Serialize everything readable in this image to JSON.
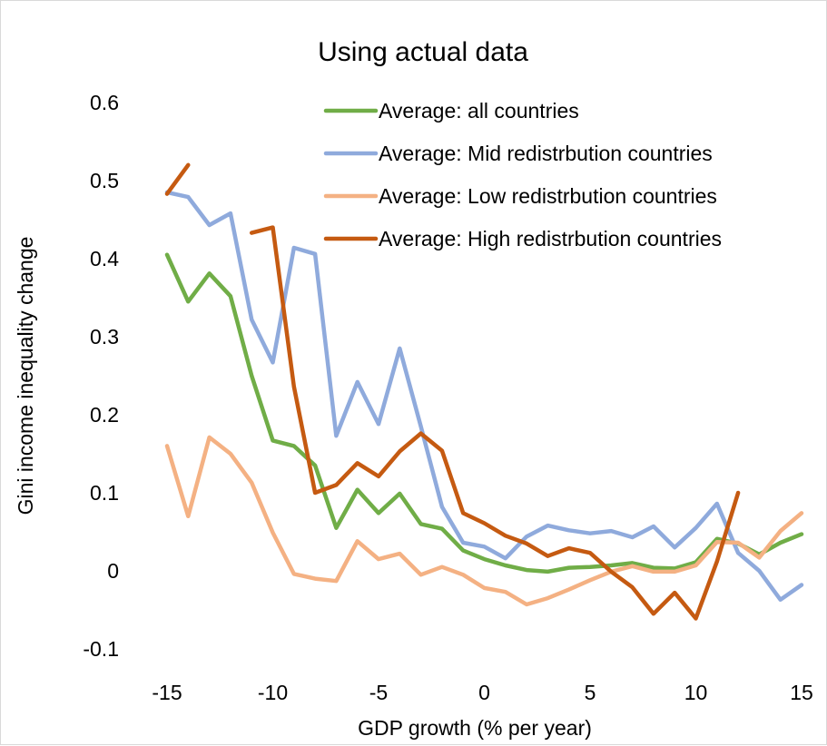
{
  "colors": {
    "all": "#70ad47",
    "mid": "#8faadc",
    "low": "#f4b183",
    "high": "#c55a11"
  },
  "chart_data": {
    "type": "line",
    "title": "Using actual data",
    "xlabel": "GDP growth (% per year)",
    "ylabel": "Gini income inequality change",
    "xlim": [
      -16,
      16
    ],
    "ylim": [
      -0.1,
      0.6
    ],
    "xticks": [
      -15,
      -10,
      -5,
      0,
      5,
      10,
      15
    ],
    "xtick_labels": [
      "-15",
      "-10",
      "-5",
      "0",
      "5",
      "10",
      "15"
    ],
    "yticks": [
      -0.1,
      0,
      0.1,
      0.2,
      0.3,
      0.4,
      0.5,
      0.6
    ],
    "ytick_labels": [
      "-0.1",
      "0",
      "0.1",
      "0.2",
      "0.3",
      "0.4",
      "0.5",
      "0.6"
    ],
    "grid": false,
    "legend": "top-right",
    "series": [
      {
        "name": "Average: all countries",
        "color_key": "all",
        "segments": [
          [
            [
              -15,
              0.405
            ],
            [
              -14,
              0.345
            ],
            [
              -13,
              0.381
            ],
            [
              -12,
              0.352
            ],
            [
              -11,
              0.25
            ],
            [
              -10,
              0.167
            ],
            [
              -9,
              0.16
            ],
            [
              -8,
              0.135
            ],
            [
              -7,
              0.055
            ],
            [
              -6,
              0.104
            ],
            [
              -5,
              0.074
            ],
            [
              -4,
              0.099
            ],
            [
              -3,
              0.06
            ],
            [
              -2,
              0.054
            ],
            [
              -1,
              0.026
            ],
            [
              0,
              0.015
            ],
            [
              1,
              0.007
            ],
            [
              2,
              0.001
            ],
            [
              3,
              -0.001
            ],
            [
              4,
              0.004
            ],
            [
              5,
              0.005
            ],
            [
              6,
              0.007
            ],
            [
              7,
              0.01
            ],
            [
              8,
              0.004
            ],
            [
              9,
              0.003
            ],
            [
              10,
              0.011
            ],
            [
              11,
              0.041
            ],
            [
              12,
              0.035
            ],
            [
              13,
              0.021
            ],
            [
              14,
              0.036
            ],
            [
              15,
              0.047
            ]
          ]
        ]
      },
      {
        "name": "Average: Mid redistrbution countries",
        "color_key": "mid",
        "segments": [
          [
            [
              -15,
              0.485
            ],
            [
              -14,
              0.479
            ],
            [
              -13,
              0.443
            ],
            [
              -12,
              0.458
            ],
            [
              -11,
              0.322
            ],
            [
              -10,
              0.267
            ],
            [
              -9,
              0.414
            ],
            [
              -8,
              0.406
            ],
            [
              -7,
              0.173
            ],
            [
              -6,
              0.242
            ],
            [
              -5,
              0.188
            ],
            [
              -4,
              0.285
            ],
            [
              -3,
              0.185
            ],
            [
              -2,
              0.082
            ],
            [
              -1,
              0.036
            ],
            [
              0,
              0.031
            ],
            [
              1,
              0.016
            ],
            [
              2,
              0.044
            ],
            [
              3,
              0.058
            ],
            [
              4,
              0.052
            ],
            [
              5,
              0.048
            ],
            [
              6,
              0.051
            ],
            [
              7,
              0.043
            ],
            [
              8,
              0.057
            ],
            [
              9,
              0.03
            ],
            [
              10,
              0.055
            ],
            [
              11,
              0.086
            ],
            [
              12,
              0.023
            ],
            [
              13,
              0.0
            ],
            [
              14,
              -0.037
            ],
            [
              15,
              -0.018
            ]
          ]
        ]
      },
      {
        "name": "Average: Low redistrbution countries",
        "color_key": "low",
        "segments": [
          [
            [
              -15,
              0.16
            ],
            [
              -14,
              0.07
            ],
            [
              -13,
              0.171
            ],
            [
              -12,
              0.15
            ],
            [
              -11,
              0.113
            ],
            [
              -10,
              0.049
            ],
            [
              -9,
              -0.004
            ],
            [
              -8,
              -0.01
            ],
            [
              -7,
              -0.013
            ],
            [
              -6,
              0.038
            ],
            [
              -5,
              0.015
            ],
            [
              -4,
              0.022
            ],
            [
              -3,
              -0.005
            ],
            [
              -2,
              0.005
            ],
            [
              -1,
              -0.005
            ],
            [
              0,
              -0.022
            ],
            [
              1,
              -0.027
            ],
            [
              2,
              -0.043
            ],
            [
              3,
              -0.035
            ],
            [
              4,
              -0.024
            ],
            [
              5,
              -0.012
            ],
            [
              6,
              -0.001
            ],
            [
              7,
              0.006
            ],
            [
              8,
              -0.001
            ],
            [
              9,
              -0.001
            ],
            [
              10,
              0.007
            ],
            [
              11,
              0.037
            ],
            [
              12,
              0.036
            ],
            [
              13,
              0.017
            ],
            [
              14,
              0.051
            ],
            [
              15,
              0.074
            ]
          ]
        ]
      },
      {
        "name": "Average: High redistrbution countries",
        "color_key": "high",
        "segments": [
          [
            [
              -15,
              0.483
            ],
            [
              -14,
              0.52
            ]
          ],
          [
            [
              -11,
              0.433
            ],
            [
              -10,
              0.44
            ],
            [
              -9,
              0.236
            ],
            [
              -8,
              0.1
            ],
            [
              -7,
              0.11
            ],
            [
              -6,
              0.138
            ],
            [
              -5,
              0.121
            ],
            [
              -4,
              0.153
            ],
            [
              -3,
              0.176
            ],
            [
              -2,
              0.154
            ],
            [
              -1,
              0.074
            ],
            [
              0,
              0.061
            ],
            [
              1,
              0.045
            ],
            [
              2,
              0.035
            ],
            [
              3,
              0.019
            ],
            [
              4,
              0.029
            ],
            [
              5,
              0.023
            ],
            [
              6,
              -0.001
            ],
            [
              7,
              -0.021
            ],
            [
              8,
              -0.055
            ],
            [
              9,
              -0.028
            ],
            [
              10,
              -0.061
            ],
            [
              11,
              0.012
            ],
            [
              12,
              0.1
            ]
          ]
        ]
      }
    ]
  }
}
